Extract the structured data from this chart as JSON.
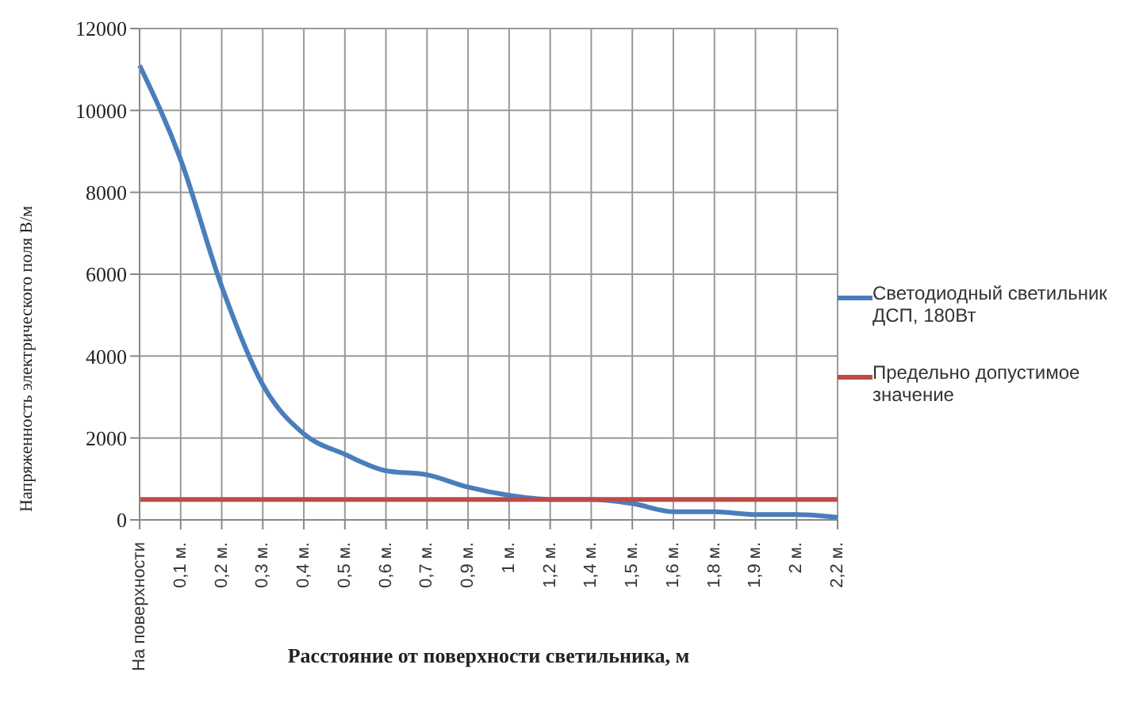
{
  "chart_data": {
    "type": "line",
    "xlabel": "Расстояние от поверхности светильника, м",
    "ylabel": "Напряженность электрического поля В/м",
    "categories": [
      "На поверхности",
      "0,1 м.",
      "0,2 м.",
      "0,3 м.",
      "0,4 м.",
      "0,5 м.",
      "0,6 м.",
      "0,7 м.",
      "0,9 м.",
      "1 м.",
      "1,2 м.",
      "1,4 м.",
      "1,5 м.",
      "1,6 м.",
      "1,8 м.",
      "1,9 м.",
      "2 м.",
      "2,2 м."
    ],
    "series": [
      {
        "name": "Светодиодный светильник ДСП, 180Вт",
        "color": "#4a7ebb",
        "values": [
          11100,
          8800,
          5700,
          3300,
          2100,
          1600,
          1200,
          1100,
          800,
          600,
          500,
          500,
          400,
          200,
          200,
          130,
          130,
          60
        ]
      },
      {
        "name": "Предельно допустимое значение",
        "color": "#be4b48",
        "values": [
          500,
          500,
          500,
          500,
          500,
          500,
          500,
          500,
          500,
          500,
          500,
          500,
          500,
          500,
          500,
          500,
          500,
          500
        ]
      }
    ],
    "ylim": [
      0,
      12000
    ],
    "yticks": [
      0,
      2000,
      4000,
      6000,
      8000,
      10000,
      12000
    ],
    "grid": true,
    "legend": "right",
    "marker": "none"
  }
}
